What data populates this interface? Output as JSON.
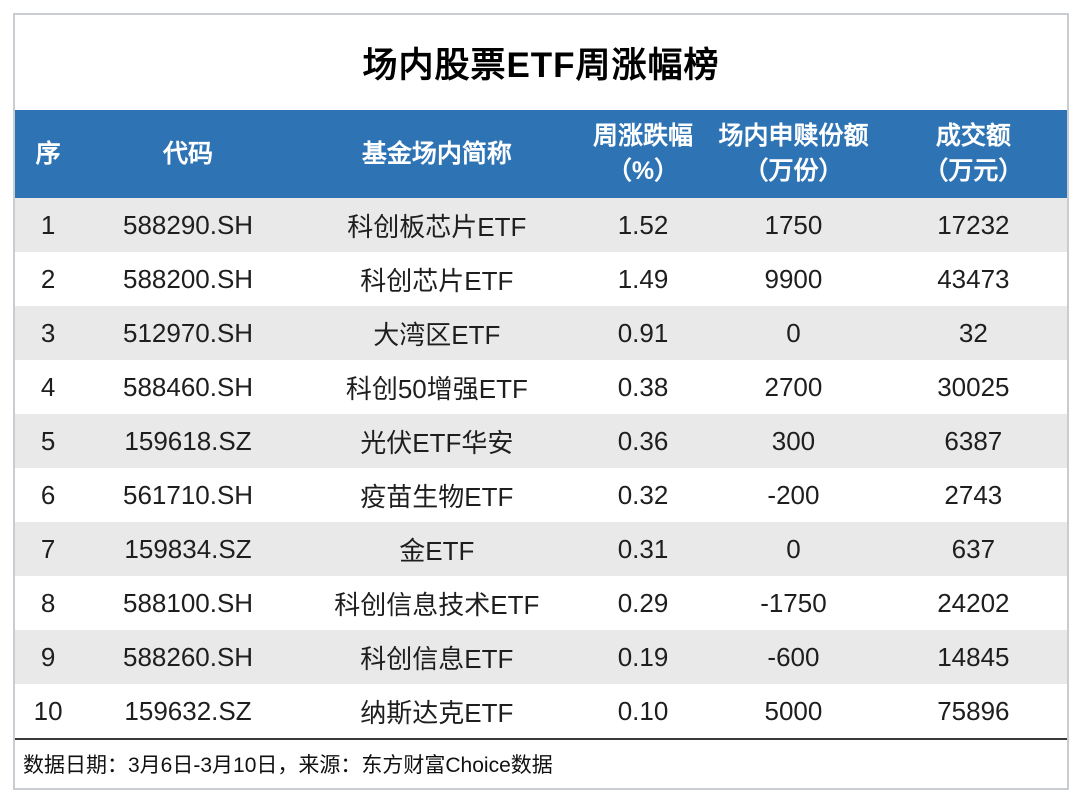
{
  "title": "场内股票ETF周涨幅榜",
  "columns": [
    {
      "line1": "序",
      "line2": ""
    },
    {
      "line1": "代码",
      "line2": ""
    },
    {
      "line1": "基金场内简称",
      "line2": ""
    },
    {
      "line1": "周涨跌幅",
      "line2": "（%）"
    },
    {
      "line1": "场内申赎份额",
      "line2": "（万份）"
    },
    {
      "line1": "成交额",
      "line2": "（万元）"
    }
  ],
  "footer_note": "数据日期：3月6日-3月10日，来源：东方财富Choice数据",
  "colors": {
    "header_bg": "#2E74B5",
    "header_text": "#FFFFFF",
    "alt_row_bg": "#E9E9E9",
    "text": "#1E1E1E",
    "border": "#C9CDD2",
    "footer_divider": "#3A3A3A"
  },
  "chart_data": {
    "type": "table",
    "title": "场内股票ETF周涨幅榜",
    "columns": [
      "序",
      "代码",
      "基金场内简称",
      "周涨跌幅（%）",
      "场内申赎份额（万份）",
      "成交额（万元）"
    ],
    "rows": [
      [
        1,
        "588290.SH",
        "科创板芯片ETF",
        1.52,
        1750,
        17232
      ],
      [
        2,
        "588200.SH",
        "科创芯片ETF",
        1.49,
        9900,
        43473
      ],
      [
        3,
        "512970.SH",
        "大湾区ETF",
        0.91,
        0,
        32
      ],
      [
        4,
        "588460.SH",
        "科创50增强ETF",
        0.38,
        2700,
        30025
      ],
      [
        5,
        "159618.SZ",
        "光伏ETF华安",
        0.36,
        300,
        6387
      ],
      [
        6,
        "561710.SH",
        "疫苗生物ETF",
        0.32,
        -200,
        2743
      ],
      [
        7,
        "159834.SZ",
        "金ETF",
        0.31,
        0,
        637
      ],
      [
        8,
        "588100.SH",
        "科创信息技术ETF",
        0.29,
        -1750,
        24202
      ],
      [
        9,
        "588260.SH",
        "科创信息ETF",
        0.19,
        -600,
        14845
      ],
      [
        10,
        "159632.SZ",
        "纳斯达克ETF",
        0.1,
        5000,
        75896
      ]
    ],
    "source_note": "数据日期：3月6日-3月10日，来源：东方财富Choice数据"
  }
}
